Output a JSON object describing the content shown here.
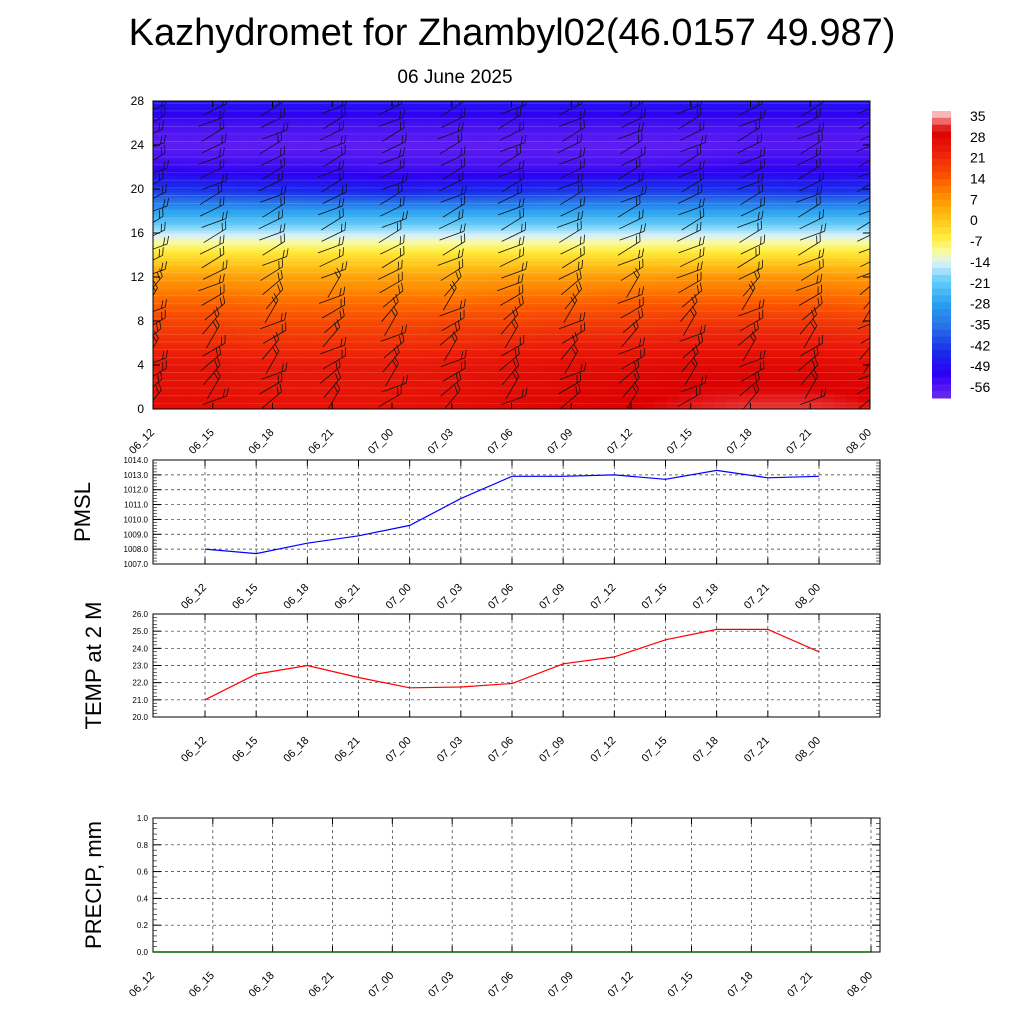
{
  "page": {
    "title": "Kazhydromet for Zhambyl02(46.0157 49.987)",
    "subtitle": "06 June 2025"
  },
  "chart_data": [
    {
      "type": "heatmap",
      "name": "temperature-cross-section",
      "x": [
        "06_12",
        "06_15",
        "06_18",
        "06_21",
        "07_00",
        "07_03",
        "07_06",
        "07_09",
        "07_12",
        "07_15",
        "07_18",
        "07_21",
        "08_00"
      ],
      "ylim": [
        0,
        28
      ],
      "yticks": [
        0,
        4,
        8,
        12,
        16,
        20,
        24,
        28
      ],
      "colorbar": {
        "labels": [
          "35",
          "28",
          "21",
          "14",
          "7",
          "0",
          "-7",
          "-14",
          "-21",
          "-28",
          "-35",
          "-42",
          "-49",
          "-56"
        ],
        "range": [
          -60,
          38
        ]
      },
      "levels": [
        0,
        2,
        4,
        6,
        8,
        10,
        12,
        14,
        16,
        18,
        20,
        22,
        24,
        26,
        28
      ],
      "values": [
        [
          28,
          27,
          26,
          22,
          18,
          13,
          7,
          -3,
          -15,
          -28,
          -43,
          -53,
          -58,
          -55,
          -48
        ],
        [
          28,
          27,
          26,
          22,
          18,
          13,
          7,
          -3,
          -15,
          -28,
          -44,
          -54,
          -58,
          -55,
          -48
        ],
        [
          27,
          26,
          25,
          21,
          17,
          12,
          6,
          -3,
          -15,
          -28,
          -45,
          -54,
          -58,
          -55,
          -48
        ],
        [
          27,
          26,
          25,
          21,
          17,
          12,
          6,
          -3,
          -15,
          -28,
          -46,
          -54,
          -58,
          -55,
          -48
        ],
        [
          27,
          26,
          25,
          21,
          17,
          12,
          6,
          -3,
          -15,
          -28,
          -47,
          -55,
          -58,
          -55,
          -48
        ],
        [
          28,
          27,
          26,
          22,
          18,
          12,
          6,
          -3,
          -15,
          -28,
          -46,
          -55,
          -58,
          -55,
          -48
        ],
        [
          29,
          28,
          27,
          23,
          18,
          13,
          7,
          -3,
          -15,
          -28,
          -45,
          -55,
          -58,
          -55,
          -48
        ],
        [
          30,
          29,
          28,
          24,
          19,
          13,
          7,
          -3,
          -15,
          -28,
          -44,
          -55,
          -58,
          -55,
          -48
        ],
        [
          31,
          30,
          28,
          24,
          19,
          14,
          7,
          -3,
          -15,
          -28,
          -43,
          -55,
          -58,
          -55,
          -48
        ],
        [
          32,
          31,
          29,
          25,
          20,
          14,
          8,
          -3,
          -15,
          -28,
          -43,
          -54,
          -58,
          -55,
          -48
        ],
        [
          33,
          31,
          29,
          25,
          20,
          14,
          8,
          -3,
          -15,
          -28,
          -44,
          -53,
          -57,
          -55,
          -48
        ],
        [
          33,
          31,
          29,
          25,
          20,
          14,
          8,
          -3,
          -15,
          -28,
          -45,
          -53,
          -57,
          -55,
          -48
        ],
        [
          32,
          30,
          28,
          24,
          19,
          13,
          7,
          -3,
          -15,
          -28,
          -44,
          -53,
          -57,
          -55,
          -48
        ]
      ]
    },
    {
      "type": "line",
      "name": "pmsl",
      "ylabel": "PMSL",
      "x": [
        "06_12",
        "06_15",
        "06_18",
        "06_21",
        "07_00",
        "07_03",
        "07_06",
        "07_09",
        "07_12",
        "07_15",
        "07_18",
        "07_21",
        "08_00"
      ],
      "series": [
        {
          "color": "#0000ff",
          "values": [
            1008.0,
            1007.7,
            1008.4,
            1008.9,
            1009.6,
            1011.4,
            1012.9,
            1012.9,
            1013.0,
            1012.7,
            1013.3,
            1012.8,
            1012.9
          ]
        }
      ],
      "ylim": [
        1007,
        1014
      ],
      "yticks": [
        "1007.0",
        "1008.0",
        "1009.0",
        "1010.0",
        "1011.0",
        "1012.0",
        "1013.0",
        "1014.0"
      ],
      "grid": true
    },
    {
      "type": "line",
      "name": "temp-2m",
      "ylabel": "TEMP at 2 M",
      "x": [
        "06_12",
        "06_15",
        "06_18",
        "06_21",
        "07_00",
        "07_03",
        "07_06",
        "07_09",
        "07_12",
        "07_15",
        "07_18",
        "07_21",
        "08_00"
      ],
      "series": [
        {
          "color": "#ff0000",
          "values": [
            21.0,
            22.5,
            23.0,
            22.3,
            21.7,
            21.75,
            21.95,
            23.1,
            23.5,
            24.5,
            25.1,
            25.1,
            23.8
          ]
        }
      ],
      "ylim": [
        20,
        26
      ],
      "yticks": [
        "20.0",
        "21.0",
        "22.0",
        "23.0",
        "24.0",
        "25.0",
        "26.0"
      ],
      "grid": true
    },
    {
      "type": "line",
      "name": "precip",
      "ylabel": "PRECIP, mm",
      "x": [
        "06_12",
        "06_15",
        "06_18",
        "06_21",
        "07_00",
        "07_03",
        "07_06",
        "07_09",
        "07_12",
        "07_15",
        "07_18",
        "07_21",
        "08_00"
      ],
      "series": [
        {
          "color": "#006400",
          "values": [
            0,
            0,
            0,
            0,
            0,
            0,
            0,
            0,
            0,
            0,
            0,
            0,
            0
          ]
        }
      ],
      "ylim": [
        0,
        1
      ],
      "yticks": [
        "0.0",
        "0.2",
        "0.4",
        "0.6",
        "0.8",
        "1.0"
      ],
      "grid": true
    }
  ]
}
